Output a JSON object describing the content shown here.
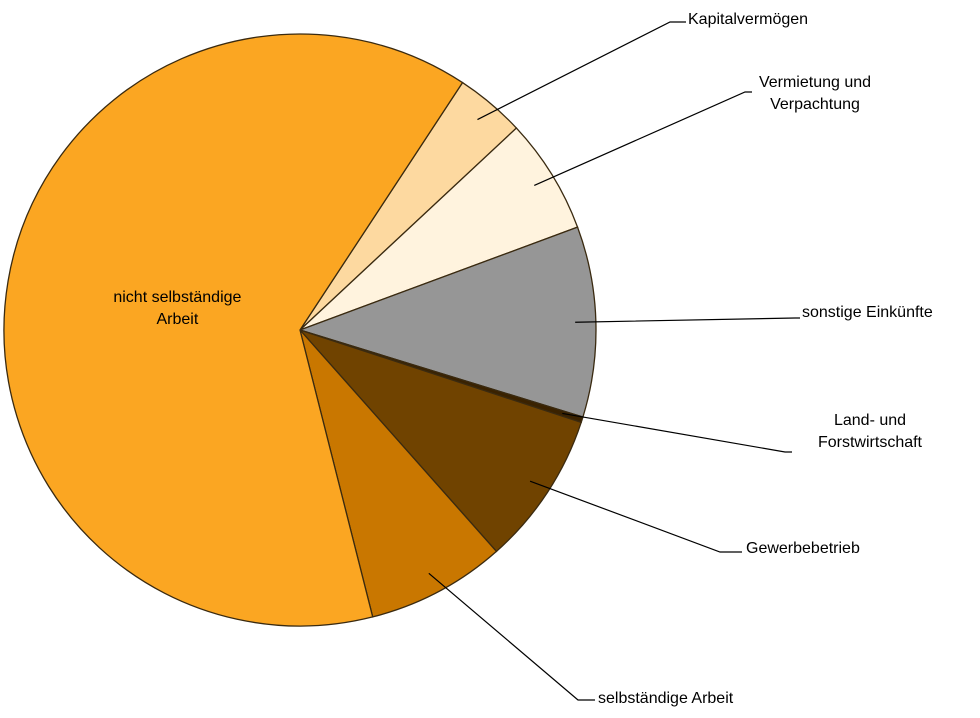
{
  "chart_data": {
    "type": "pie",
    "categories": [
      "Kapitalvermögen",
      "Vermietung und Verpachtung",
      "sonstige Einkünfte",
      "Land- und Forstwirtschaft",
      "Gewerbebetrieb",
      "selbständige Arbeit",
      "nicht selbständige Arbeit"
    ],
    "values": [
      3.8,
      6.3,
      10.4,
      0.3,
      8.4,
      7.6,
      63.2
    ],
    "colors": [
      "#FDD9A0",
      "#FFF3DE",
      "#969696",
      "#3A2200",
      "#704300",
      "#C97700",
      "#FBA622"
    ]
  }
}
